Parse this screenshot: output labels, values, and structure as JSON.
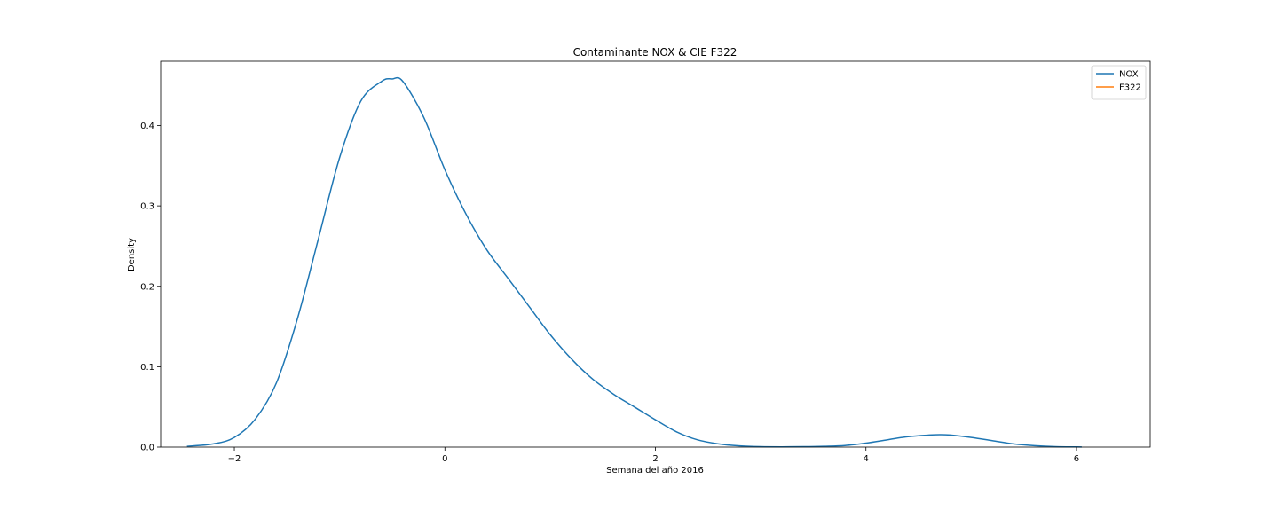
{
  "chart_data": {
    "type": "line",
    "title": "Contaminante NOX & CIE F322",
    "xlabel": "Semana del año 2016",
    "ylabel": "Density",
    "xlim": [
      -2.7,
      6.7
    ],
    "ylim": [
      0,
      0.48
    ],
    "xticks": [
      -2,
      0,
      2,
      4,
      6
    ],
    "xtick_labels": [
      "−2",
      "0",
      "2",
      "4",
      "6"
    ],
    "yticks": [
      0.0,
      0.1,
      0.2,
      0.3,
      0.4
    ],
    "ytick_labels": [
      "0.0",
      "0.1",
      "0.2",
      "0.3",
      "0.4"
    ],
    "grid": false,
    "legend": {
      "position": "top-right"
    },
    "series": [
      {
        "name": "NOX",
        "color": "#1f77b4",
        "x": [
          -2.45,
          -2.2,
          -2.0,
          -1.8,
          -1.6,
          -1.4,
          -1.2,
          -1.0,
          -0.8,
          -0.6,
          -0.5,
          -0.4,
          -0.2,
          0.0,
          0.2,
          0.4,
          0.6,
          0.8,
          1.0,
          1.2,
          1.4,
          1.6,
          1.8,
          2.0,
          2.2,
          2.4,
          2.6,
          2.8,
          3.0,
          3.2,
          3.4,
          3.6,
          3.8,
          4.0,
          4.2,
          4.4,
          4.6,
          4.7,
          4.8,
          5.0,
          5.2,
          5.4,
          5.6,
          5.8,
          6.05
        ],
        "y": [
          0.001,
          0.004,
          0.012,
          0.035,
          0.08,
          0.16,
          0.26,
          0.36,
          0.43,
          0.455,
          0.458,
          0.455,
          0.41,
          0.345,
          0.29,
          0.245,
          0.21,
          0.175,
          0.14,
          0.11,
          0.085,
          0.066,
          0.05,
          0.034,
          0.019,
          0.009,
          0.004,
          0.0015,
          0.0005,
          0.0003,
          0.0005,
          0.001,
          0.002,
          0.005,
          0.009,
          0.013,
          0.015,
          0.0155,
          0.015,
          0.012,
          0.008,
          0.004,
          0.0018,
          0.0006,
          0.0002
        ]
      },
      {
        "name": "F322",
        "color": "#ff7f0e",
        "x": [],
        "y": []
      }
    ]
  }
}
